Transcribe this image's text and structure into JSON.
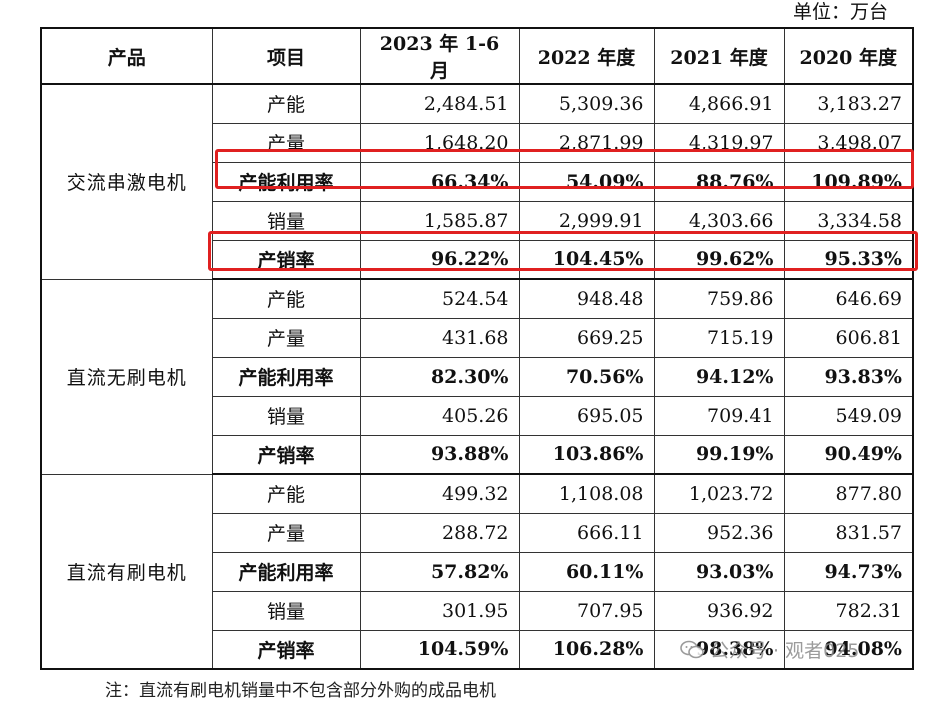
{
  "unit_label": "单位：万台",
  "header": [
    "产品",
    "项目",
    "2023 年 1-6 月",
    "2022 年度",
    "2021 年度",
    "2020 年度"
  ],
  "groups": [
    {
      "product": "交流串激电机",
      "rows": [
        {
          "item": "产能",
          "values": [
            "2,484.51",
            "5,309.36",
            "4,866.91",
            "3,183.27"
          ]
        },
        {
          "item": "产量",
          "values": [
            "1,648.20",
            "2,871.99",
            "4,319.97",
            "3,498.07"
          ]
        },
        {
          "item": "产能利用率",
          "values": [
            "66.34%",
            "54.09%",
            "88.76%",
            "109.89%"
          ]
        },
        {
          "item": "销量",
          "values": [
            "1,585.87",
            "2,999.91",
            "4,303.66",
            "3,334.58"
          ]
        },
        {
          "item": "产销率",
          "values": [
            "96.22%",
            "104.45%",
            "99.62%",
            "95.33%"
          ]
        }
      ]
    },
    {
      "product": "直流无刷电机",
      "rows": [
        {
          "item": "产能",
          "values": [
            "524.54",
            "948.48",
            "759.86",
            "646.69"
          ]
        },
        {
          "item": "产量",
          "values": [
            "431.68",
            "669.25",
            "715.19",
            "606.81"
          ]
        },
        {
          "item": "产能利用率",
          "values": [
            "82.30%",
            "70.56%",
            "94.12%",
            "93.83%"
          ]
        },
        {
          "item": "销量",
          "values": [
            "405.26",
            "695.05",
            "709.41",
            "549.09"
          ]
        },
        {
          "item": "产销率",
          "values": [
            "93.88%",
            "103.86%",
            "99.19%",
            "90.49%"
          ]
        }
      ]
    },
    {
      "product": "直流有刷电机",
      "rows": [
        {
          "item": "产能",
          "values": [
            "499.32",
            "1,108.08",
            "1,023.72",
            "877.80"
          ]
        },
        {
          "item": "产量",
          "values": [
            "288.72",
            "666.11",
            "952.36",
            "831.57"
          ]
        },
        {
          "item": "产能利用率",
          "values": [
            "57.82%",
            "60.11%",
            "93.03%",
            "94.73%"
          ]
        },
        {
          "item": "销量",
          "values": [
            "301.95",
            "707.95",
            "936.92",
            "782.31"
          ]
        },
        {
          "item": "产销率",
          "values": [
            "104.59%",
            "106.28%",
            "98.38%",
            "94.08%"
          ]
        }
      ]
    }
  ],
  "footnote": "注：直流有刷电机销量中不包含部分外购的成品电机",
  "watermark": "公众号 · 观者025",
  "highlight_color": "#e02020"
}
